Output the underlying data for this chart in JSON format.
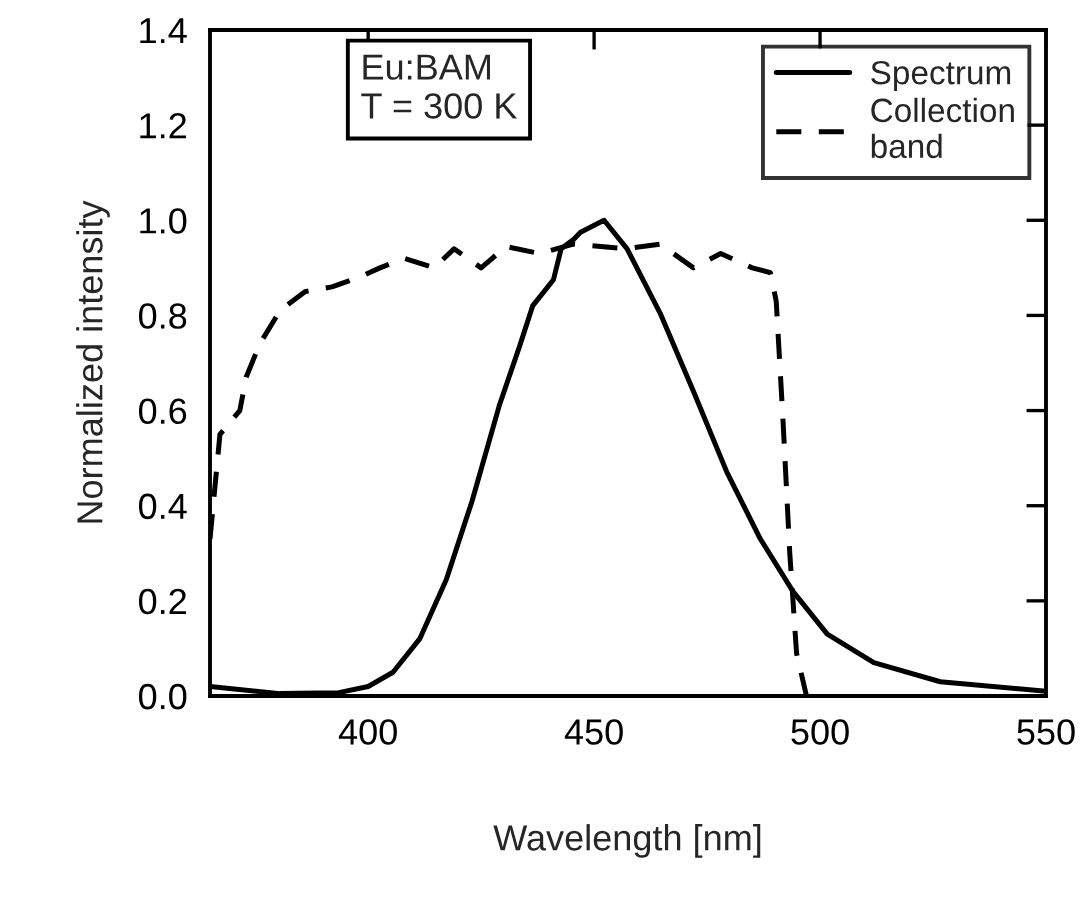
{
  "chart_data": {
    "type": "line",
    "xlabel": "Wavelength [nm]",
    "ylabel": "Normalized intensity",
    "annotations": [
      "Eu:BAM\nT = 300 K"
    ],
    "xlim": [
      365,
      550
    ],
    "ylim": [
      0,
      1.4
    ],
    "xticks": [
      400,
      450,
      500,
      550
    ],
    "yticks": [
      {
        "value": 0,
        "label": "0.0"
      },
      0.2,
      0.4,
      0.6,
      0.8,
      {
        "value": 1,
        "label": "1.0"
      },
      1.2,
      1.4
    ],
    "grid": false,
    "legend": "top right",
    "marker": "none",
    "series": [
      {
        "name": "Spectrum",
        "color": "#000000",
        "line_style": "solid",
        "x": [
          365,
          380.5,
          393.5,
          400,
          405.5,
          411.4,
          417.3,
          423,
          429,
          433.5,
          436.4,
          441,
          442.7,
          445.5,
          447,
          452.2,
          457.3,
          464.6,
          472,
          479.4,
          486.8,
          494,
          501.6,
          511.9,
          526.6,
          550
        ],
        "values": [
          0.02,
          0.005,
          0.007,
          0.02,
          0.05,
          0.12,
          0.245,
          0.41,
          0.61,
          0.735,
          0.82,
          0.875,
          0.94,
          0.96,
          0.975,
          1.0,
          0.94,
          0.805,
          0.64,
          0.47,
          0.33,
          0.22,
          0.13,
          0.07,
          0.03,
          0.01
        ]
      },
      {
        "name": "Collection\nband",
        "color": "#000000",
        "line_style": "dashed",
        "x": [
          365,
          367.2,
          371.6,
          373,
          376,
          380.5,
          386,
          392,
          398,
          402.6,
          408,
          414.6,
          419,
          425,
          430.5,
          438,
          445.4,
          457,
          464.6,
          472,
          478,
          485,
          489,
          490.3,
          491.8,
          493.3,
          494.8,
          497
        ],
        "values": [
          0.33,
          0.55,
          0.6,
          0.67,
          0.74,
          0.81,
          0.85,
          0.86,
          0.88,
          0.9,
          0.92,
          0.9,
          0.94,
          0.9,
          0.945,
          0.93,
          0.95,
          0.94,
          0.95,
          0.9,
          0.93,
          0.9,
          0.89,
          0.83,
          0.58,
          0.3,
          0.09,
          0.0
        ]
      }
    ]
  }
}
